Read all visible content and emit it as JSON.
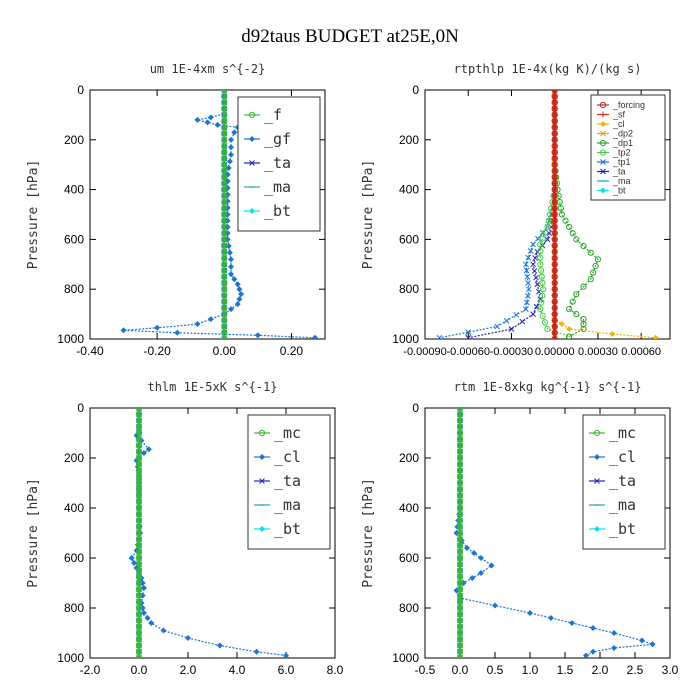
{
  "figure": {
    "title": "d92taus  BUDGET at25E,0N"
  },
  "chart_data": [
    {
      "id": "um",
      "type": "line",
      "title": "um   1E-4xm s^{-2}",
      "ylabel": "Pressure [hPa]",
      "xlim": [
        -0.4,
        0.3
      ],
      "ylim": [
        1000,
        0
      ],
      "xticks": [
        -0.4,
        -0.2,
        0.0,
        0.2
      ],
      "xtick_labels": [
        "-0.40",
        "-0.20",
        "0.00",
        "0.20"
      ],
      "yticks": [
        0,
        200,
        400,
        600,
        800,
        1000
      ],
      "ytick_labels": [
        "0",
        "200",
        "400",
        "600",
        "800",
        "1000"
      ],
      "legend": {
        "position": "top-right",
        "small": false
      },
      "series": [
        {
          "name": "_f",
          "color": "#33bb33",
          "width": 2.5,
          "points": [
            [
              0,
              0
            ],
            [
              0,
              100
            ],
            [
              0,
              200
            ],
            [
              0,
              300
            ],
            [
              0,
              400
            ],
            [
              0,
              500
            ],
            [
              0,
              600
            ],
            [
              0,
              700
            ],
            [
              0,
              800
            ],
            [
              0,
              900
            ],
            [
              0,
              1000
            ]
          ]
        },
        {
          "name": "_gf",
          "color": "#1a75d6",
          "width": 1.2,
          "points": [
            [
              0,
              0
            ],
            [
              0,
              80
            ],
            [
              0,
              95
            ],
            [
              -0.04,
              110
            ],
            [
              -0.08,
              120
            ],
            [
              -0.05,
              130
            ],
            [
              -0.02,
              140
            ],
            [
              0.04,
              150
            ],
            [
              0.06,
              160
            ],
            [
              0.03,
              170
            ],
            [
              0.02,
              200
            ],
            [
              0.02,
              260
            ],
            [
              0.01,
              340
            ],
            [
              0.01,
              420
            ],
            [
              0.01,
              500
            ],
            [
              0.01,
              600
            ],
            [
              0.02,
              680
            ],
            [
              0.02,
              740
            ],
            [
              0.04,
              780
            ],
            [
              0.05,
              820
            ],
            [
              0.04,
              860
            ],
            [
              0.0,
              900
            ],
            [
              -0.04,
              920
            ],
            [
              -0.08,
              940
            ],
            [
              -0.2,
              955
            ],
            [
              -0.3,
              965
            ],
            [
              -0.14,
              975
            ],
            [
              0.1,
              985
            ],
            [
              0.27,
              995
            ]
          ]
        },
        {
          "name": "_ta",
          "color": "#2222bb",
          "width": 1,
          "points": [
            [
              0,
              0
            ],
            [
              0,
              400
            ],
            [
              0,
              1000
            ]
          ]
        },
        {
          "name": "_ma",
          "color": "#22a6a6",
          "width": 1,
          "points": [
            [
              0,
              0
            ],
            [
              0,
              1000
            ]
          ]
        },
        {
          "name": "_bt",
          "color": "#00e5ee",
          "width": 1,
          "points": [
            [
              0,
              0
            ],
            [
              0,
              1000
            ]
          ]
        }
      ]
    },
    {
      "id": "rtpthlp",
      "type": "line",
      "title": "rtpthlp   1E-4x(kg K)/(kg s)",
      "ylabel": "Pressure [hPa]",
      "xlim": [
        -0.0009,
        0.0008
      ],
      "ylim": [
        1000,
        0
      ],
      "xticks": [
        -0.0009,
        -0.0006,
        -0.0003,
        0.0,
        0.0003,
        0.0006
      ],
      "xtick_labels": [
        "-0.00090",
        "-0.00060",
        "-0.00030",
        "0.00000",
        "0.00030",
        "0.00060"
      ],
      "yticks": [
        0,
        200,
        400,
        600,
        800,
        1000
      ],
      "ytick_labels": [
        "0",
        "200",
        "400",
        "600",
        "800",
        "1000"
      ],
      "legend": {
        "position": "top-right",
        "small": true
      },
      "series": [
        {
          "name": "_forcing",
          "color": "#cc2222",
          "width": 3,
          "points": [
            [
              0,
              0
            ],
            [
              0,
              1000
            ]
          ]
        },
        {
          "name": "_sf",
          "color": "#dd2222",
          "width": 1,
          "points": [
            [
              0,
              0
            ],
            [
              0,
              1000
            ]
          ]
        },
        {
          "name": "_cl",
          "color": "#f4b400",
          "width": 1.2,
          "points": [
            [
              0,
              0
            ],
            [
              0,
              920
            ],
            [
              0.0001,
              960
            ],
            [
              0.0004,
              980
            ],
            [
              0.0007,
              995
            ]
          ]
        },
        {
          "name": "_dp2",
          "color": "#e8a000",
          "width": 1,
          "points": [
            [
              0,
              0
            ],
            [
              0,
              1000
            ]
          ]
        },
        {
          "name": "_dp1",
          "color": "#22aa22",
          "width": 1.2,
          "points": [
            [
              0,
              0
            ],
            [
              0,
              300
            ],
            [
              2e-05,
              400
            ],
            [
              5e-05,
              500
            ],
            [
              0.00015,
              600
            ],
            [
              0.0003,
              680
            ],
            [
              0.00025,
              760
            ],
            [
              0.00015,
              820
            ],
            [
              0.0001,
              880
            ],
            [
              0.0002,
              920
            ],
            [
              0.0002,
              960
            ],
            [
              0.0001,
              990
            ]
          ]
        },
        {
          "name": "_tp2",
          "color": "#44cc44",
          "width": 1.2,
          "points": [
            [
              0,
              0
            ],
            [
              0,
              400
            ],
            [
              -5e-05,
              550
            ],
            [
              -0.0001,
              620
            ],
            [
              -0.0001,
              700
            ],
            [
              -8e-05,
              800
            ],
            [
              -0.0001,
              880
            ],
            [
              -5e-05,
              960
            ],
            [
              0.0001,
              990
            ]
          ]
        },
        {
          "name": "_tp1",
          "color": "#1a75d6",
          "width": 1.2,
          "points": [
            [
              0,
              0
            ],
            [
              0,
              450
            ],
            [
              -5e-05,
              550
            ],
            [
              -0.00015,
              620
            ],
            [
              -0.0002,
              700
            ],
            [
              -0.00018,
              800
            ],
            [
              -0.0002,
              880
            ],
            [
              -0.0004,
              950
            ],
            [
              -0.0008,
              995
            ]
          ]
        },
        {
          "name": "_ta",
          "color": "#2222bb",
          "width": 1.2,
          "points": [
            [
              0,
              0
            ],
            [
              0,
              500
            ],
            [
              -5e-05,
              600
            ],
            [
              -0.00012,
              650
            ],
            [
              -0.00015,
              700
            ],
            [
              -0.00012,
              780
            ],
            [
              -0.0001,
              840
            ],
            [
              -0.00015,
              900
            ],
            [
              -0.0003,
              960
            ],
            [
              -0.0006,
              995
            ]
          ]
        },
        {
          "name": "_ma",
          "color": "#22a6a6",
          "width": 1,
          "points": [
            [
              0,
              0
            ],
            [
              0,
              1000
            ]
          ]
        },
        {
          "name": "_bt",
          "color": "#00e5ee",
          "width": 1,
          "points": [
            [
              0,
              0
            ],
            [
              0,
              1000
            ]
          ]
        }
      ]
    },
    {
      "id": "thlm",
      "type": "line",
      "title": "thlm   1E-5xK s^{-1}",
      "ylabel": "Pressure [hPa]",
      "xlim": [
        -2.0,
        8.0
      ],
      "ylim": [
        1000,
        0
      ],
      "xticks": [
        -2,
        0,
        2,
        4,
        6,
        8
      ],
      "xtick_labels": [
        "-2.0",
        "0.0",
        "2.0",
        "4.0",
        "6.0",
        "8.0"
      ],
      "yticks": [
        0,
        200,
        400,
        600,
        800,
        1000
      ],
      "ytick_labels": [
        "0",
        "200",
        "400",
        "600",
        "800",
        "1000"
      ],
      "legend": {
        "position": "top-right",
        "small": false
      },
      "series": [
        {
          "name": "_mc",
          "color": "#33bb33",
          "width": 3,
          "points": [
            [
              0,
              0
            ],
            [
              0,
              1000
            ]
          ]
        },
        {
          "name": "_cl",
          "color": "#1a75d6",
          "width": 1.2,
          "points": [
            [
              0,
              0
            ],
            [
              0,
              90
            ],
            [
              -0.1,
              110
            ],
            [
              0.1,
              130
            ],
            [
              0.4,
              165
            ],
            [
              0.2,
              180
            ],
            [
              -0.1,
              210
            ],
            [
              0,
              260
            ],
            [
              0,
              340
            ],
            [
              0,
              420
            ],
            [
              0.05,
              500
            ],
            [
              -0.1,
              570
            ],
            [
              -0.3,
              600
            ],
            [
              -0.1,
              640
            ],
            [
              0.1,
              680
            ],
            [
              0.2,
              720
            ],
            [
              0.1,
              780
            ],
            [
              0.2,
              820
            ],
            [
              0.5,
              860
            ],
            [
              1.0,
              890
            ],
            [
              2.0,
              920
            ],
            [
              3.3,
              950
            ],
            [
              4.8,
              975
            ],
            [
              6.0,
              990
            ],
            [
              6.0,
              998
            ]
          ]
        },
        {
          "name": "_ta",
          "color": "#2222bb",
          "width": 1,
          "points": [
            [
              0,
              0
            ],
            [
              0,
              1000
            ]
          ]
        },
        {
          "name": "_ma",
          "color": "#22a6a6",
          "width": 1,
          "points": [
            [
              0,
              0
            ],
            [
              0,
              1000
            ]
          ]
        },
        {
          "name": "_bt",
          "color": "#00e5ee",
          "width": 1,
          "points": [
            [
              0,
              0
            ],
            [
              0,
              1000
            ]
          ]
        }
      ]
    },
    {
      "id": "rtm",
      "type": "line",
      "title": "rtm   1E-8xkg kg^{-1} s^{-1}",
      "ylabel": "Pressure [hPa]",
      "xlim": [
        -0.5,
        3.0
      ],
      "ylim": [
        1000,
        0
      ],
      "xticks": [
        -0.5,
        0.0,
        0.5,
        1.0,
        1.5,
        2.0,
        2.5,
        3.0
      ],
      "xtick_labels": [
        "-0.5",
        "0.0",
        "0.5",
        "1.0",
        "1.5",
        "2.0",
        "2.5",
        "3.0"
      ],
      "yticks": [
        0,
        200,
        400,
        600,
        800,
        1000
      ],
      "ytick_labels": [
        "0",
        "200",
        "400",
        "600",
        "800",
        "1000"
      ],
      "legend": {
        "position": "top-right",
        "small": false
      },
      "series": [
        {
          "name": "_mc",
          "color": "#33bb33",
          "width": 3,
          "points": [
            [
              0,
              0
            ],
            [
              0,
              1000
            ]
          ]
        },
        {
          "name": "_cl",
          "color": "#1a75d6",
          "width": 1.2,
          "points": [
            [
              0,
              0
            ],
            [
              0,
              400
            ],
            [
              -0.05,
              500
            ],
            [
              0.1,
              560
            ],
            [
              0.3,
              600
            ],
            [
              0.45,
              630
            ],
            [
              0.3,
              660
            ],
            [
              0.05,
              700
            ],
            [
              -0.05,
              730
            ],
            [
              0,
              760
            ],
            [
              0.5,
              790
            ],
            [
              1.0,
              820
            ],
            [
              1.6,
              860
            ],
            [
              2.2,
              900
            ],
            [
              2.6,
              930
            ],
            [
              2.75,
              945
            ],
            [
              2.2,
              960
            ],
            [
              1.9,
              975
            ],
            [
              1.8,
              990
            ]
          ]
        },
        {
          "name": "_ta",
          "color": "#2222bb",
          "width": 1,
          "points": [
            [
              0,
              0
            ],
            [
              0,
              1000
            ]
          ]
        },
        {
          "name": "_ma",
          "color": "#22a6a6",
          "width": 1,
          "points": [
            [
              0,
              0
            ],
            [
              0,
              1000
            ]
          ]
        },
        {
          "name": "_bt",
          "color": "#00e5ee",
          "width": 1,
          "points": [
            [
              0,
              0
            ],
            [
              0,
              1000
            ]
          ]
        }
      ]
    }
  ]
}
